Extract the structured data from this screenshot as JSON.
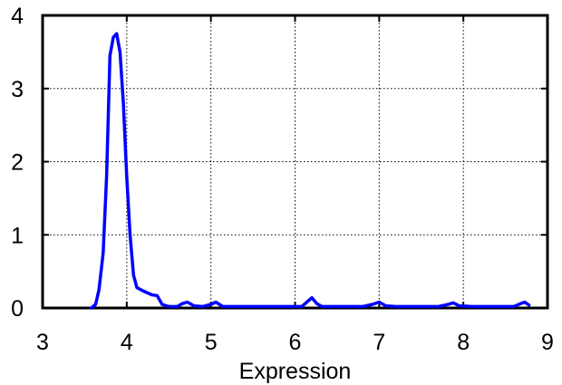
{
  "chart_data": {
    "type": "line",
    "xlabel": "Expression",
    "ylabel": "",
    "xlim": [
      3,
      9
    ],
    "ylim": [
      0,
      4
    ],
    "x_ticks": [
      3,
      4,
      5,
      6,
      7,
      8,
      9
    ],
    "y_ticks": [
      0,
      1,
      2,
      3,
      4
    ],
    "grid": true,
    "line_color": "#0000ff",
    "series": [
      {
        "x": [
          3.58,
          3.63,
          3.67,
          3.72,
          3.76,
          3.8,
          3.84,
          3.88,
          3.92,
          3.96,
          4.0,
          4.04,
          4.08,
          4.12,
          4.2,
          4.3,
          4.36,
          4.42,
          4.5,
          4.6,
          4.66,
          4.72,
          4.8,
          4.9,
          5.0,
          5.06,
          5.14,
          5.3,
          5.6,
          5.9,
          6.08,
          6.14,
          6.2,
          6.26,
          6.32,
          6.5,
          6.8,
          6.92,
          7.0,
          7.08,
          7.2,
          7.5,
          7.7,
          7.82,
          7.88,
          7.95,
          8.1,
          8.4,
          8.6,
          8.68,
          8.73,
          8.78
        ],
        "y": [
          0.0,
          0.05,
          0.25,
          0.75,
          1.8,
          3.45,
          3.7,
          3.75,
          3.5,
          2.8,
          1.8,
          1.0,
          0.45,
          0.28,
          0.23,
          0.18,
          0.17,
          0.05,
          0.02,
          0.02,
          0.06,
          0.08,
          0.03,
          0.02,
          0.05,
          0.08,
          0.02,
          0.02,
          0.02,
          0.02,
          0.02,
          0.08,
          0.14,
          0.06,
          0.02,
          0.02,
          0.02,
          0.05,
          0.08,
          0.03,
          0.02,
          0.02,
          0.02,
          0.05,
          0.07,
          0.03,
          0.02,
          0.02,
          0.02,
          0.06,
          0.08,
          0.04
        ]
      }
    ]
  }
}
